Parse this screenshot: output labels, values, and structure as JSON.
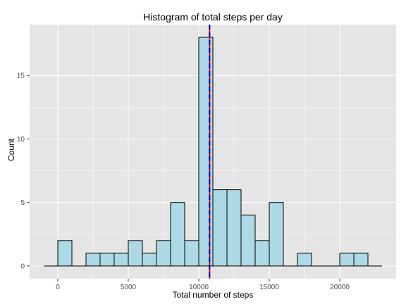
{
  "chart_data": {
    "type": "bar",
    "title": "Histogram of total steps per day",
    "xlabel": "Total number of steps",
    "ylabel": "Count",
    "bin_width": 1000,
    "bins": [
      {
        "start": -1000,
        "count": 0
      },
      {
        "start": 0,
        "count": 2
      },
      {
        "start": 1000,
        "count": 0
      },
      {
        "start": 2000,
        "count": 1
      },
      {
        "start": 3000,
        "count": 1
      },
      {
        "start": 4000,
        "count": 1
      },
      {
        "start": 5000,
        "count": 2
      },
      {
        "start": 6000,
        "count": 1
      },
      {
        "start": 7000,
        "count": 2
      },
      {
        "start": 8000,
        "count": 5
      },
      {
        "start": 9000,
        "count": 2
      },
      {
        "start": 10000,
        "count": 18
      },
      {
        "start": 11000,
        "count": 6
      },
      {
        "start": 12000,
        "count": 6
      },
      {
        "start": 13000,
        "count": 4
      },
      {
        "start": 14000,
        "count": 2
      },
      {
        "start": 15000,
        "count": 5
      },
      {
        "start": 16000,
        "count": 0
      },
      {
        "start": 17000,
        "count": 1
      },
      {
        "start": 18000,
        "count": 0
      },
      {
        "start": 19000,
        "count": 0
      },
      {
        "start": 20000,
        "count": 1
      },
      {
        "start": 21000,
        "count": 1
      },
      {
        "start": 22000,
        "count": 0
      }
    ],
    "xlim": [
      -2000,
      24000
    ],
    "ylim": [
      -1,
      19
    ],
    "x_ticks": [
      0,
      5000,
      10000,
      15000,
      20000
    ],
    "y_ticks": [
      0,
      5,
      10,
      15
    ],
    "x_tick_labels": [
      "0",
      "5000",
      "10000",
      "15000",
      "20000"
    ],
    "y_tick_labels": [
      "0",
      "5",
      "10",
      "15"
    ],
    "reference_lines": [
      {
        "value": 10766,
        "color": "#ff0000",
        "style": "solid"
      },
      {
        "value": 10765,
        "color": "#0000cc",
        "style": "dashed"
      }
    ],
    "grid": true,
    "colors": {
      "panel": "#e5e5e5",
      "grid": "#ffffff",
      "bar_fill": "#add8e6",
      "bar_stroke": "#000000"
    }
  }
}
